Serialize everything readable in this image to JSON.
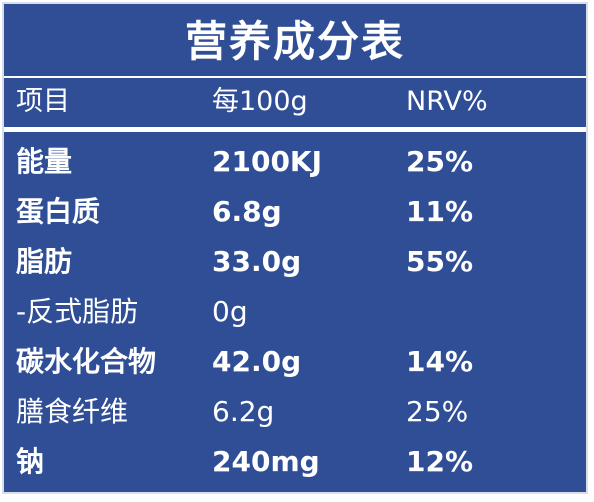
{
  "title": "营养成分表",
  "header": {
    "item": "项目",
    "per": "每100g",
    "nrv": "NRV%"
  },
  "rows": [
    {
      "name": "能量",
      "amount": "2100KJ",
      "nrv": "25%",
      "bold": true
    },
    {
      "name": "蛋白质",
      "amount": "6.8g",
      "nrv": "11%",
      "bold": true
    },
    {
      "name": "脂肪",
      "amount": "33.0g",
      "nrv": "55%",
      "bold": true
    },
    {
      "name": "-反式脂肪",
      "amount": "0g",
      "nrv": "",
      "bold": false
    },
    {
      "name": "碳水化合物",
      "amount": "42.0g",
      "nrv": "14%",
      "bold": true
    },
    {
      "name": "膳食纤维",
      "amount": "6.2g",
      "nrv": "25%",
      "bold": false
    },
    {
      "name": "钠",
      "amount": "240mg",
      "nrv": "12%",
      "bold": true
    }
  ],
  "colors": {
    "background": "#2f4e96",
    "text": "#ffffff"
  }
}
